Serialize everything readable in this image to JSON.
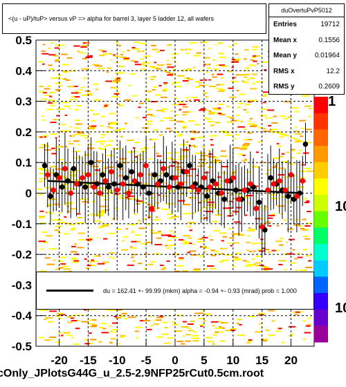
{
  "chart_data": {
    "type": "scatter",
    "title": "<(u - uP)/tuP> versus   vP => alpha for barrel 3, layer 5 ladder 12, all wafers",
    "xlabel": "",
    "ylabel": "",
    "xlim": [
      -24,
      24
    ],
    "ylim": [
      -0.5,
      0.5
    ],
    "x_ticks": [
      "-20",
      "-15",
      "-10",
      "-5",
      "0",
      "5",
      "10",
      "15",
      "20"
    ],
    "y_ticks": [
      "-0.5",
      "-0.4",
      "-0.3",
      "-0.2",
      "-0.1",
      "0",
      "0.1",
      "0.2",
      "0.3",
      "0.4",
      "0.5"
    ],
    "grid": true,
    "series": [
      {
        "marker": "black-circle",
        "color": "#000000",
        "x": [
          -22.5,
          -21.5,
          -20.5,
          -19.5,
          -18.5,
          -17.5,
          -16.5,
          -15.5,
          -14.5,
          -13.5,
          -12.5,
          -11.5,
          -10.5,
          -9.5,
          -8.5,
          -7.5,
          -6.5,
          -5.5,
          -4.5,
          -3.5,
          -2.5,
          -1.5,
          -0.5,
          0.5,
          1.5,
          2.5,
          3.5,
          4.5,
          5.5,
          6.5,
          7.5,
          8.5,
          9.5,
          10.5,
          11.5,
          12.5,
          13.5,
          14.5,
          15.5,
          16.5,
          17.5,
          18.5,
          19.5,
          20.5,
          21.5,
          22.5
        ],
        "y": [
          0.09,
          -0.01,
          0.06,
          0.02,
          0.04,
          0.08,
          0.03,
          0.02,
          0.1,
          0.03,
          0.06,
          0.02,
          0.03,
          0.09,
          0.05,
          0.07,
          0.03,
          0.02,
          0.0,
          0.06,
          0.04,
          0.06,
          0.05,
          0.02,
          0.07,
          0.09,
          0.03,
          0.02,
          -0.01,
          0.04,
          0.0,
          -0.02,
          0.04,
          0.01,
          -0.02,
          0.01,
          0.02,
          -0.03,
          -0.12,
          0.05,
          0.03,
          0.01,
          -0.01,
          -0.02,
          0.0,
          0.16
        ]
      },
      {
        "marker": "red-circle",
        "color": "#ff0000",
        "x": [
          -22.0,
          -21.0,
          -20.0,
          -19.0,
          -18.0,
          -17.0,
          -16.0,
          -15.0,
          -14.0,
          -13.0,
          -12.0,
          -11.0,
          -10.0,
          -9.0,
          -8.0,
          -7.0,
          -6.0,
          -5.0,
          -4.0,
          -3.0,
          -2.0,
          -1.0,
          0.0,
          1.0,
          2.0,
          3.0,
          4.0,
          5.0,
          6.0,
          7.0,
          8.0,
          9.0,
          10.0,
          11.0,
          12.0,
          13.0,
          14.0,
          15.0,
          16.0,
          17.0,
          18.0,
          19.0,
          20.0,
          21.0,
          22.0
        ],
        "y": [
          0.06,
          0.01,
          0.05,
          0.08,
          0.0,
          0.03,
          0.05,
          0.06,
          0.02,
          0.0,
          0.04,
          0.07,
          0.01,
          0.03,
          0.0,
          0.04,
          0.06,
          0.09,
          -0.05,
          0.03,
          0.08,
          0.02,
          0.05,
          0.03,
          0.07,
          0.02,
          0.01,
          0.05,
          0.02,
          0.03,
          0.0,
          0.04,
          0.05,
          -0.02,
          0.01,
          0.03,
          -0.05,
          -0.11,
          0.01,
          0.03,
          0.04,
          0.01,
          0.06,
          -0.01,
          0.04
        ]
      }
    ],
    "fit_line": {
      "x": [
        -22,
        22
      ],
      "y": [
        0.04,
        0.0
      ]
    },
    "stats": {
      "name": "duOvertuPvP5012",
      "rows": [
        {
          "label": "Entries",
          "value": "19712"
        },
        {
          "label": "Mean x",
          "value": "0.1556"
        },
        {
          "label": "Mean y",
          "value": "0.01964"
        },
        {
          "label": "RMS x",
          "value": "12.2"
        },
        {
          "label": "RMS y",
          "value": "0.2609"
        }
      ]
    },
    "legend_text": "du =  162.41 +-  99.99 (mkm) alpha =   -0.94 +-  0.93 (mrad) prob = 1.000",
    "z_labels": [
      "1",
      "10",
      "10"
    ],
    "footer": "cOnly_JPlotsG44G_u_2.5-2.9NFP25rCut0.5cm.root"
  }
}
